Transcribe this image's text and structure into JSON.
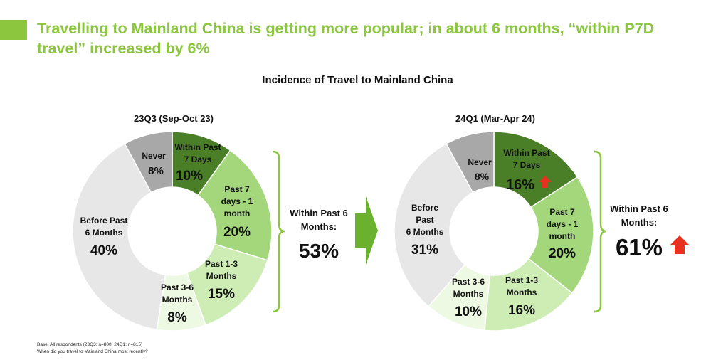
{
  "header": {
    "title": "Travelling to Mainland China is getting more popular; in about 6 months, “within P7D travel” increased by 6%"
  },
  "chart_data": {
    "type": "pie",
    "title": "Incidence of Travel to Mainland China",
    "donut": true,
    "charts": [
      {
        "title": "23Q3 (Sep-Oct 23)",
        "slices": [
          {
            "label": "Within Past 7 Days",
            "value": 10,
            "display": "10%",
            "color": "#4a7f28"
          },
          {
            "label": "Past 7 days - 1 month",
            "value": 20,
            "display": "20%",
            "color": "#a4d67c"
          },
          {
            "label": "Past 1-3 Months",
            "value": 15,
            "display": "15%",
            "color": "#cdedb5"
          },
          {
            "label": "Past 3-6 Months",
            "value": 8,
            "display": "8%",
            "color": "#eef9e3"
          },
          {
            "label": "Before Past 6 Months",
            "value": 40,
            "display": "40%",
            "color": "#e7e7e7"
          },
          {
            "label": "Never",
            "value": 8,
            "display": "8%",
            "color": "#a8a8a8"
          }
        ],
        "summary_label": "Within Past 6 Months:",
        "summary_value": "53%"
      },
      {
        "title": "24Q1 (Mar-Apr 24)",
        "slices": [
          {
            "label": "Within Past 7 Days",
            "value": 16,
            "display": "16%",
            "color": "#4a7f28",
            "arrow": true
          },
          {
            "label": "Past 7 days - 1 month",
            "value": 20,
            "display": "20%",
            "color": "#a4d67c"
          },
          {
            "label": "Past 1-3 Months",
            "value": 16,
            "display": "16%",
            "color": "#cdedb5"
          },
          {
            "label": "Past 3-6 Months",
            "value": 10,
            "display": "10%",
            "color": "#eef9e3"
          },
          {
            "label": "Before Past 6 Months",
            "value": 31,
            "display": "31%",
            "color": "#e7e7e7"
          },
          {
            "label": "Never",
            "value": 8,
            "display": "8%",
            "color": "#a8a8a8"
          }
        ],
        "summary_label": "Within Past 6 Months:",
        "summary_value": "61%",
        "summary_arrow": true
      }
    ]
  },
  "footnote": {
    "base": "Base: All respondents (23Q3: n=800; 24Q1: n=815)",
    "question": "When did you travel to Mainland China most recently?"
  },
  "colors": {
    "accent": "#8cc63f",
    "arrow_up": "#e8311f",
    "bracket": "#8cc63f",
    "transition_arrow": "#6bb130"
  }
}
